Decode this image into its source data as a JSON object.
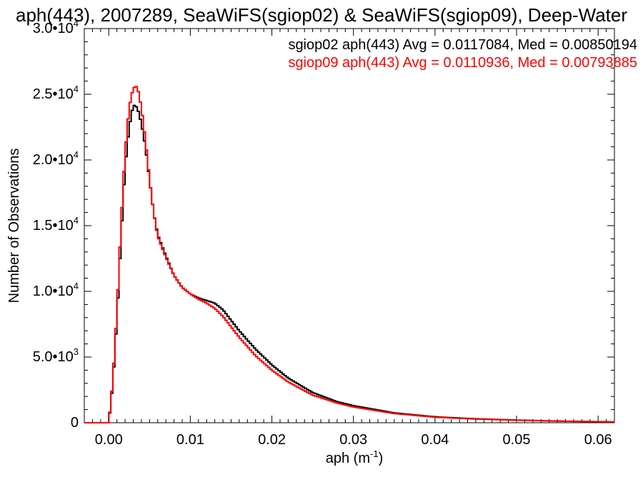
{
  "chart_data": {
    "type": "line",
    "title": "aph(443), 2007289, SeaWiFS(sgiop02) & SeaWiFS(sgiop09), Deep-Water",
    "xlabel": "aph (m",
    "xlabel_sup": "-1",
    "xlabel_end": ")",
    "ylabel": "Number of Observations",
    "xlim": [
      -0.003,
      0.062
    ],
    "ylim": [
      0,
      30000
    ],
    "grid": false,
    "legend_position": "top-right",
    "x_ticks": [
      {
        "value": 0.0,
        "label": "0.00"
      },
      {
        "value": 0.01,
        "label": "0.01"
      },
      {
        "value": 0.02,
        "label": "0.02"
      },
      {
        "value": 0.03,
        "label": "0.03"
      },
      {
        "value": 0.04,
        "label": "0.04"
      },
      {
        "value": 0.05,
        "label": "0.05"
      },
      {
        "value": 0.06,
        "label": "0.06"
      }
    ],
    "y_ticks": [
      {
        "value": 0,
        "mant": "0",
        "exp": ""
      },
      {
        "value": 5000,
        "mant": "5.0•10",
        "exp": "3"
      },
      {
        "value": 10000,
        "mant": "1.0•10",
        "exp": "4"
      },
      {
        "value": 15000,
        "mant": "1.5•10",
        "exp": "4"
      },
      {
        "value": 20000,
        "mant": "2.0•10",
        "exp": "4"
      },
      {
        "value": 25000,
        "mant": "2.5•10",
        "exp": "4"
      },
      {
        "value": 30000,
        "mant": "3.0•10",
        "exp": "4"
      }
    ],
    "series": [
      {
        "name": "sgiop02 aph(443) Avg = 0.0117084, Med = 0.00850194",
        "color": "#000000",
        "x": [
          -0.003,
          0.0,
          0.0005,
          0.001,
          0.0015,
          0.002,
          0.0025,
          0.003,
          0.0035,
          0.004,
          0.0045,
          0.005,
          0.0055,
          0.006,
          0.007,
          0.008,
          0.009,
          0.01,
          0.011,
          0.012,
          0.013,
          0.014,
          0.015,
          0.016,
          0.018,
          0.02,
          0.022,
          0.025,
          0.028,
          0.03,
          0.035,
          0.04,
          0.045,
          0.05,
          0.055,
          0.06,
          0.062
        ],
        "y": [
          0,
          0,
          3000,
          8000,
          14000,
          19500,
          22500,
          24200,
          24000,
          22800,
          21000,
          18500,
          16000,
          14300,
          12700,
          11200,
          10300,
          9800,
          9500,
          9300,
          9100,
          8600,
          7800,
          7000,
          5600,
          4400,
          3400,
          2300,
          1600,
          1300,
          750,
          450,
          300,
          200,
          130,
          80,
          60
        ]
      },
      {
        "name": "sgiop09 aph(443) Avg = 0.0110936, Med = 0.00793885",
        "color": "#ff0000",
        "x": [
          -0.003,
          0.0,
          0.0005,
          0.001,
          0.0015,
          0.002,
          0.0025,
          0.003,
          0.0035,
          0.004,
          0.0045,
          0.005,
          0.0055,
          0.006,
          0.007,
          0.008,
          0.009,
          0.01,
          0.011,
          0.012,
          0.013,
          0.014,
          0.015,
          0.016,
          0.018,
          0.02,
          0.022,
          0.025,
          0.028,
          0.03,
          0.035,
          0.04,
          0.045,
          0.05,
          0.055,
          0.06,
          0.062
        ],
        "y": [
          0,
          0,
          3200,
          8500,
          15000,
          20500,
          24000,
          25500,
          25600,
          24000,
          21500,
          18500,
          16000,
          14200,
          12600,
          11200,
          10300,
          9800,
          9400,
          9100,
          8700,
          8100,
          7300,
          6500,
          5100,
          4000,
          3100,
          2100,
          1500,
          1200,
          700,
          420,
          280,
          190,
          120,
          75,
          55
        ]
      }
    ]
  }
}
